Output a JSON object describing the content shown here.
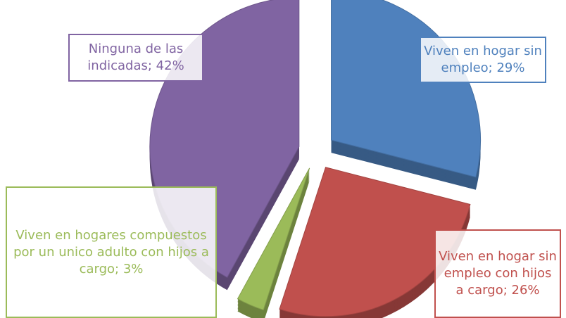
{
  "chart_data": {
    "type": "pie",
    "categories": [
      "Viven en hogar sin empleo; 29%",
      "Viven en hogar sin empleo con hijos a cargo; 26%",
      "Viven en hogares compuestos por un unico adulto con hijos a cargo; 3%",
      "Ninguna de las indicadas; 42%"
    ],
    "values": [
      29,
      26,
      3,
      42
    ],
    "colors": [
      "#4f81bd",
      "#c0504d",
      "#9bbb59",
      "#8064a2"
    ]
  }
}
